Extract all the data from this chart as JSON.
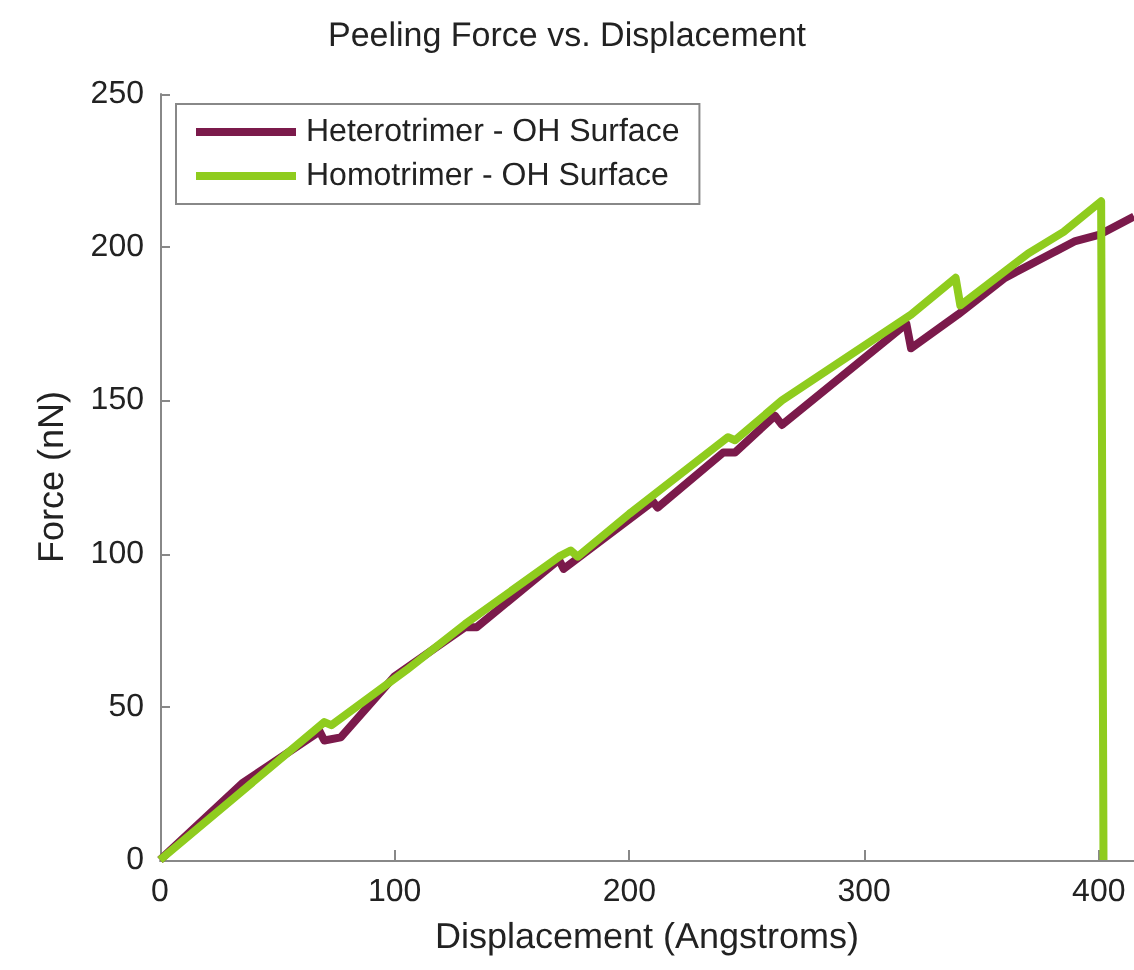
{
  "chart_data": {
    "type": "line",
    "title": "Peeling Force vs. Displacement",
    "xlabel": "Displacement (Angstroms)",
    "ylabel": "Force (nN)",
    "xlim": [
      0,
      415
    ],
    "xticks": [
      0,
      100,
      200,
      300,
      400
    ],
    "ylim": [
      0,
      250
    ],
    "yticks": [
      0,
      50,
      100,
      150,
      200,
      250
    ],
    "grid": false,
    "legend": "top left",
    "marker": "none",
    "line_style": "solid",
    "series": [
      {
        "name": "Heterotrimer - OH Surface",
        "color": "#7b1a4b",
        "x": [
          0,
          35,
          68,
          70,
          77,
          100,
          130,
          135,
          170,
          172,
          210,
          212,
          240,
          245,
          262,
          265,
          318,
          320,
          340,
          360,
          380,
          390,
          400,
          415
        ],
        "values": [
          0,
          25,
          42,
          39,
          40,
          60,
          76,
          76,
          98,
          95,
          117,
          115,
          133,
          133,
          145,
          142,
          175,
          167,
          178,
          190,
          198,
          202,
          204,
          210
        ]
      },
      {
        "name": "Homotrimer - OH Surface",
        "color": "#8fcc1e",
        "x": [
          0,
          70,
          73,
          105,
          130,
          170,
          175,
          178,
          200,
          242,
          245,
          265,
          320,
          339,
          341,
          370,
          385,
          401,
          402
        ],
        "values": [
          0,
          45,
          44,
          62,
          77,
          99,
          101,
          99,
          113,
          138,
          137,
          150,
          178,
          190,
          181,
          198,
          205,
          215,
          0
        ]
      }
    ]
  }
}
